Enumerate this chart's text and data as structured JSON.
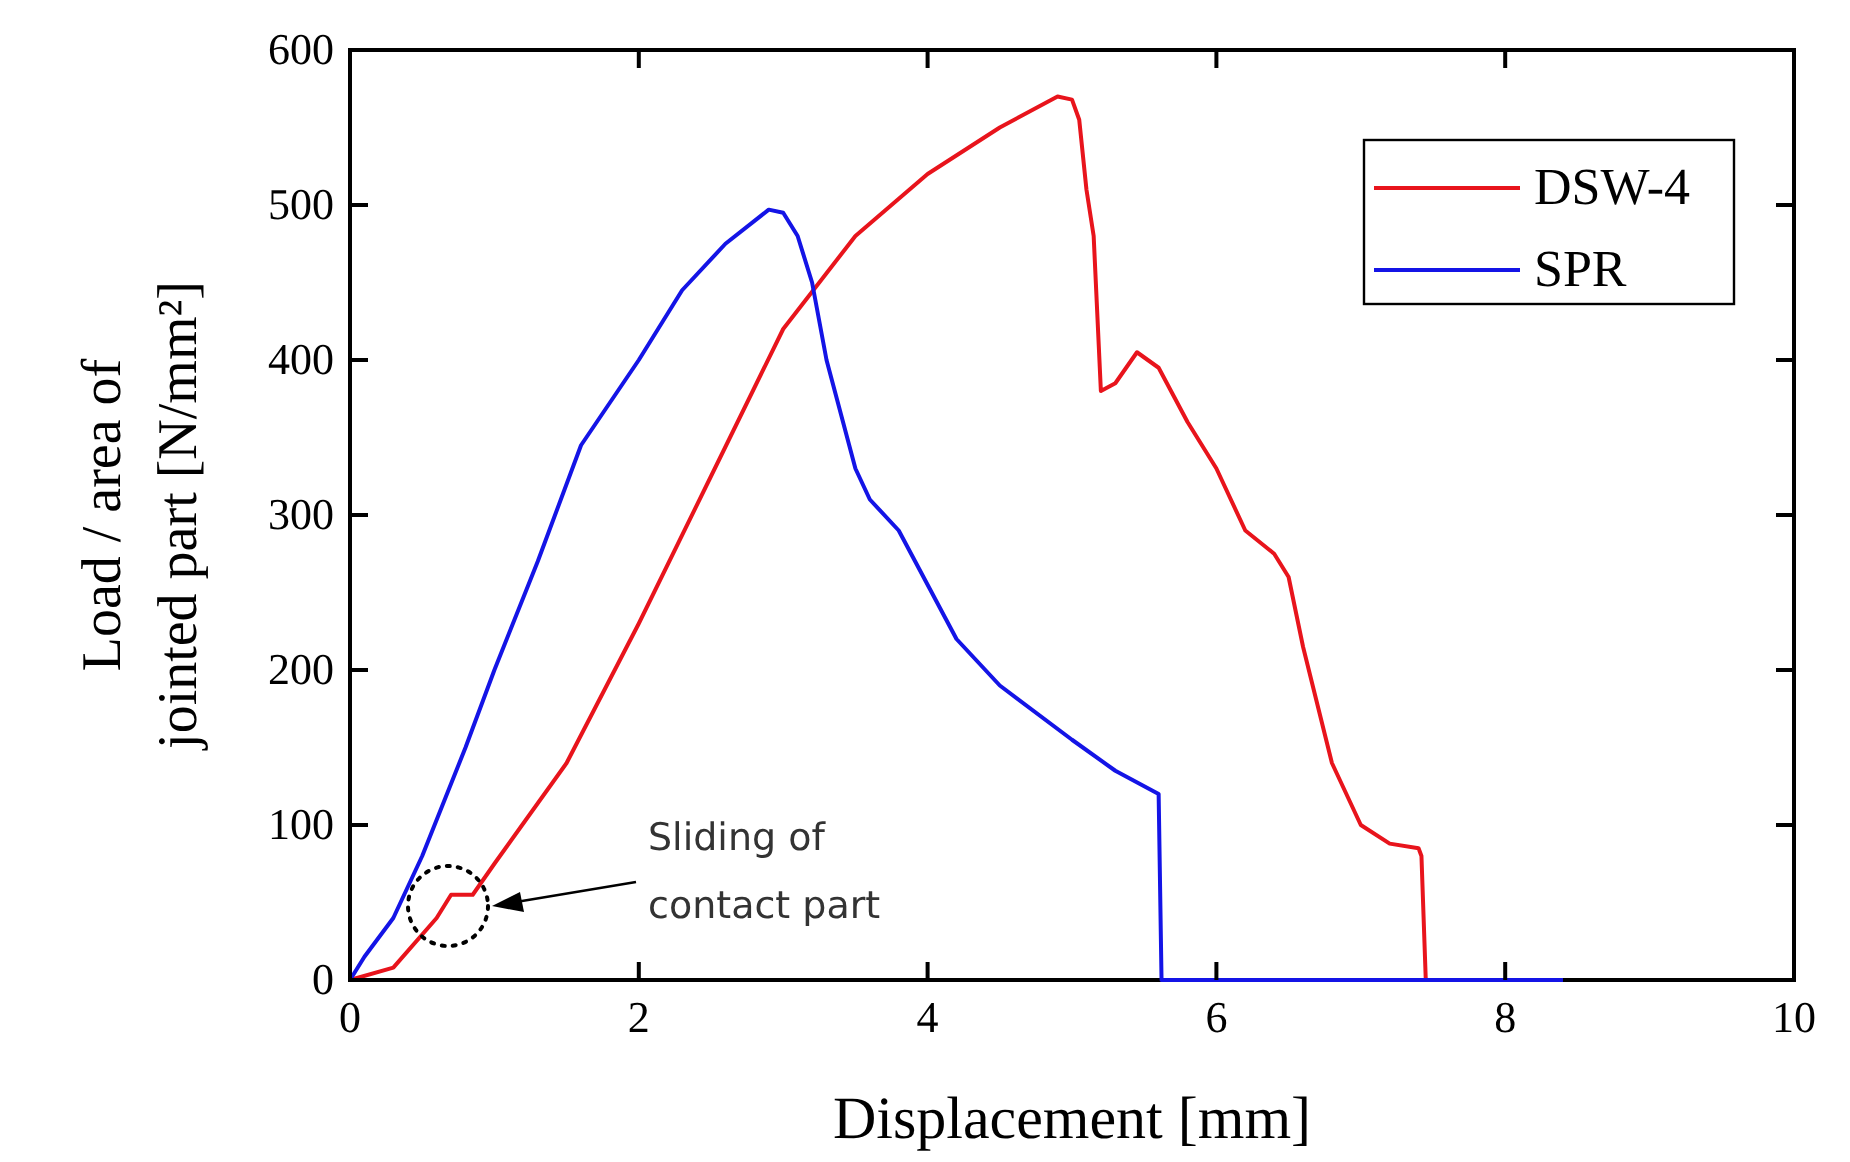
{
  "chart_data": {
    "type": "line",
    "xlabel": "Displacement [mm]",
    "ylabel": "Load / area of\njointed part [N/mm²]",
    "xlim": [
      0,
      10
    ],
    "ylim": [
      0,
      600
    ],
    "xticks": [
      0,
      2,
      4,
      6,
      8,
      10
    ],
    "yticks": [
      0,
      100,
      200,
      300,
      400,
      500,
      600
    ],
    "grid": false,
    "legend": "top right",
    "marker": "none",
    "line_style": "solid",
    "annotations": [
      "Sliding of\ncontact part"
    ],
    "series": [
      {
        "name": "DSW-4",
        "color": "#e8141c",
        "x": [
          0,
          0.3,
          0.6,
          0.7,
          0.85,
          1.0,
          1.5,
          2,
          2.5,
          3,
          3.5,
          4,
          4.5,
          4.9,
          5.0,
          5.05,
          5.1,
          5.15,
          5.2,
          5.3,
          5.45,
          5.6,
          5.8,
          6.0,
          6.2,
          6.4,
          6.5,
          6.6,
          6.8,
          7.0,
          7.2,
          7.4,
          7.42,
          7.45
        ],
        "values": [
          0,
          8,
          40,
          55,
          55,
          75,
          140,
          230,
          325,
          420,
          480,
          520,
          550,
          570,
          568,
          555,
          510,
          480,
          380,
          385,
          405,
          395,
          360,
          330,
          290,
          275,
          260,
          215,
          140,
          100,
          88,
          85,
          80,
          0
        ]
      },
      {
        "name": "SPR",
        "color": "#1414e6",
        "x": [
          0,
          0.1,
          0.3,
          0.5,
          0.8,
          1,
          1.3,
          1.6,
          2,
          2.3,
          2.6,
          2.9,
          3.0,
          3.1,
          3.2,
          3.3,
          3.5,
          3.6,
          3.8,
          4,
          4.2,
          4.5,
          5,
          5.3,
          5.6,
          5.62,
          8.4
        ],
        "values": [
          0,
          15,
          40,
          80,
          150,
          200,
          270,
          345,
          400,
          445,
          475,
          497,
          495,
          480,
          450,
          400,
          330,
          310,
          290,
          255,
          220,
          190,
          155,
          135,
          120,
          0,
          0
        ]
      }
    ]
  }
}
